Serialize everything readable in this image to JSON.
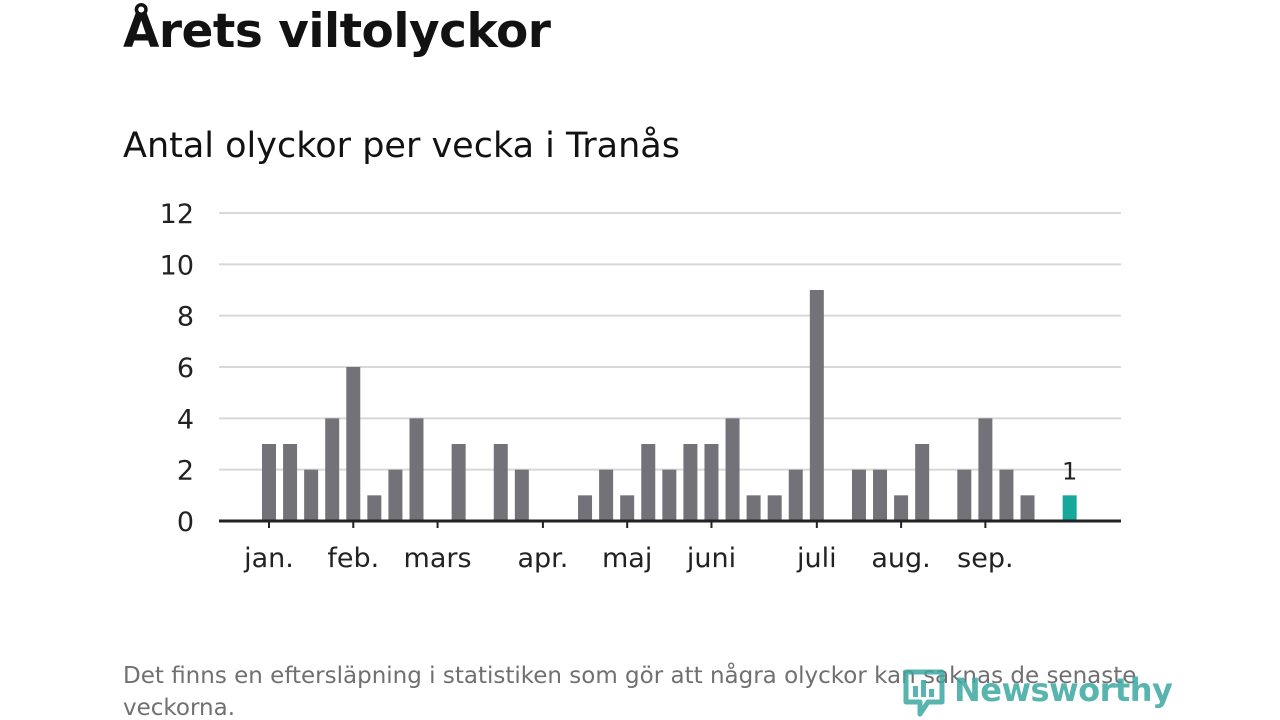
{
  "header": {
    "title": "Årets viltolyckor",
    "subtitle": "Antal olyckor per vecka i Tranås"
  },
  "footer": {
    "note": "Det finns en eftersläpning i statistiken som gör att några olyckor kan saknas de senaste veckorna.",
    "brand": "Newsworthy"
  },
  "colors": {
    "bar": "#737278",
    "highlight": "#16a99b",
    "grid": "#d8d8d8",
    "axis": "#222222",
    "text": "#222222",
    "brand": "#3aa8a0"
  },
  "chart_data": {
    "type": "bar",
    "title": "Antal olyckor per vecka i Tranås",
    "xlabel": "",
    "ylabel": "",
    "ylim": [
      0,
      12
    ],
    "yticks": [
      0,
      2,
      4,
      6,
      8,
      10,
      12
    ],
    "grid": true,
    "weeks": [
      1,
      2,
      3,
      4,
      5,
      6,
      7,
      8,
      9,
      10,
      11,
      12,
      13,
      14,
      15,
      16,
      17,
      18,
      19,
      20,
      21,
      22,
      23,
      24,
      25,
      26,
      27,
      28,
      29,
      30,
      31,
      32,
      33,
      34,
      35,
      36,
      37,
      38,
      39,
      40
    ],
    "values": [
      3,
      3,
      2,
      4,
      6,
      1,
      2,
      4,
      0,
      3,
      0,
      3,
      2,
      0,
      0,
      1,
      2,
      1,
      3,
      2,
      3,
      3,
      4,
      1,
      1,
      2,
      9,
      0,
      2,
      2,
      1,
      3,
      0,
      2,
      4,
      2,
      1,
      0,
      1,
      null
    ],
    "highlight_index": 38,
    "highlight_label": "1",
    "month_labels": [
      {
        "label": "jan.",
        "week": 1
      },
      {
        "label": "feb.",
        "week": 5
      },
      {
        "label": "mars",
        "week": 9
      },
      {
        "label": "apr.",
        "week": 14
      },
      {
        "label": "maj",
        "week": 18
      },
      {
        "label": "juni",
        "week": 22
      },
      {
        "label": "juli",
        "week": 27
      },
      {
        "label": "aug.",
        "week": 31
      },
      {
        "label": "sep.",
        "week": 35
      }
    ]
  }
}
